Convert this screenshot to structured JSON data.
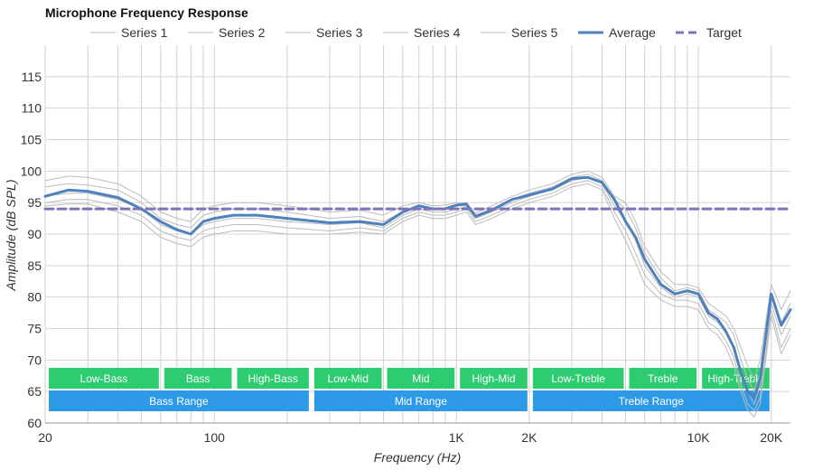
{
  "chart_data": {
    "type": "line",
    "title": "Microphone Frequency Response",
    "xlabel": "Frequency (Hz)",
    "ylabel": "Amplitude (dB SPL)",
    "x_scale": "log",
    "xlim": [
      20,
      24000
    ],
    "ylim": [
      60,
      120
    ],
    "x_ticks": [
      {
        "value": 20,
        "label": "20"
      },
      {
        "value": 100,
        "label": "100"
      },
      {
        "value": 1000,
        "label": "1K"
      },
      {
        "value": 2000,
        "label": "2K"
      },
      {
        "value": 10000,
        "label": "10K"
      },
      {
        "value": 20000,
        "label": "20K"
      }
    ],
    "y_ticks": [
      60,
      65,
      70,
      75,
      80,
      85,
      90,
      95,
      100,
      105,
      110,
      115
    ],
    "legend_position": "top",
    "grid": true,
    "x": [
      20,
      25,
      30,
      40,
      50,
      60,
      70,
      80,
      90,
      100,
      120,
      150,
      200,
      300,
      400,
      500,
      600,
      700,
      800,
      900,
      1000,
      1100,
      1200,
      1400,
      1700,
      2000,
      2500,
      3000,
      3500,
      4000,
      4500,
      5000,
      5500,
      6000,
      7000,
      8000,
      9000,
      10000,
      11000,
      12000,
      13000,
      14000,
      15000,
      16000,
      17000,
      18000,
      20000,
      22000,
      24000
    ],
    "series": [
      {
        "name": "Series 1",
        "color": "#bbbbbb",
        "dashed": false,
        "width": 1,
        "values": [
          98.5,
          99.2,
          99,
          98,
          96,
          93.5,
          92.5,
          92,
          94,
          94.5,
          95,
          95,
          94.5,
          93.5,
          93.8,
          93,
          94.5,
          95,
          94.5,
          94.6,
          95,
          94.8,
          93.3,
          94.5,
          96,
          97,
          98,
          99.5,
          100,
          99,
          96,
          95,
          92,
          88,
          84,
          82,
          82,
          81.5,
          79,
          78,
          77,
          75,
          72,
          69,
          67,
          70,
          82,
          78,
          81
        ]
      },
      {
        "name": "Series 2",
        "color": "#bbbbbb",
        "dashed": false,
        "width": 1,
        "values": [
          97.5,
          98,
          97.8,
          97,
          95,
          92.5,
          91.5,
          91,
          93,
          93.5,
          94,
          94,
          93.5,
          92.5,
          92.8,
          92,
          93.5,
          94.5,
          94,
          94,
          94.5,
          94.5,
          93,
          94,
          95.5,
          96.5,
          97.5,
          99,
          99.5,
          98.5,
          95.5,
          94,
          91,
          87,
          83,
          81,
          81.5,
          81,
          78,
          77,
          76,
          74,
          70,
          67,
          65,
          68,
          80,
          76,
          79
        ]
      },
      {
        "name": "Series 3",
        "color": "#bbbbbb",
        "dashed": false,
        "width": 1,
        "values": [
          96,
          96.5,
          96.5,
          95.5,
          94,
          91.5,
          90.5,
          90,
          91.5,
          92,
          92.5,
          92.5,
          92,
          91.5,
          91.8,
          91,
          93,
          94,
          93.5,
          93.5,
          94,
          94.3,
          92.5,
          93.5,
          95,
          96,
          97,
          98.5,
          99,
          98,
          94.5,
          92,
          89,
          85,
          81.5,
          80,
          80.5,
          80,
          77,
          76,
          74.5,
          72,
          68,
          65,
          63,
          66,
          79,
          74,
          77
        ]
      },
      {
        "name": "Series 4",
        "color": "#bbbbbb",
        "dashed": false,
        "width": 1,
        "values": [
          95,
          95.5,
          95.5,
          94.5,
          93,
          90.5,
          89.5,
          89,
          90.5,
          91,
          91.5,
          91.5,
          91,
          90.5,
          91,
          90.5,
          92.5,
          93.5,
          93,
          93,
          93.5,
          94,
          92,
          93,
          94.5,
          95.5,
          96.5,
          98,
          98.5,
          97.5,
          93.5,
          90.5,
          87,
          83.5,
          80.5,
          79.5,
          79.5,
          79,
          76,
          75,
          73,
          70.5,
          66,
          63,
          62,
          64,
          78,
          72,
          75
        ]
      },
      {
        "name": "Series 5",
        "color": "#bbbbbb",
        "dashed": false,
        "width": 1,
        "values": [
          94.5,
          94.8,
          94.8,
          93.5,
          92,
          89.5,
          88.5,
          88,
          89.5,
          90,
          90.5,
          90.5,
          90,
          90,
          90.3,
          90,
          92,
          93,
          92.5,
          92.5,
          93,
          93.5,
          91.5,
          92.5,
          94,
          95,
          96,
          97.5,
          98,
          97,
          92.5,
          89,
          85.5,
          82,
          79.5,
          78.5,
          78.5,
          78,
          75,
          74,
          72,
          69,
          65,
          62,
          61,
          63,
          77,
          71,
          74
        ]
      },
      {
        "name": "Average",
        "color": "#4f81bd",
        "dashed": false,
        "width": 3,
        "values": [
          96,
          97,
          96.8,
          95.8,
          94,
          92,
          90.7,
          90,
          92,
          92.5,
          93,
          93,
          92.5,
          91.8,
          92,
          91.5,
          93.5,
          94.5,
          94,
          94,
          94.6,
          94.8,
          92.8,
          93.8,
          95.5,
          96.2,
          97.2,
          98.8,
          99,
          98.2,
          95.5,
          92,
          89.5,
          86,
          82,
          80.5,
          81,
          80.5,
          77.5,
          76.5,
          74.5,
          72,
          68,
          65,
          64,
          67,
          80.5,
          75.5,
          78
        ]
      },
      {
        "name": "Target",
        "color": "#7b74b8",
        "dashed": true,
        "width": 3,
        "values": [
          94,
          94,
          94,
          94,
          94,
          94,
          94,
          94,
          94,
          94,
          94,
          94,
          94,
          94,
          94,
          94,
          94,
          94,
          94,
          94,
          94,
          94,
          94,
          94,
          94,
          94,
          94,
          94,
          94,
          94,
          94,
          94,
          94,
          94,
          94,
          94,
          94,
          94,
          94,
          94,
          94,
          94,
          94,
          94,
          94,
          94,
          94,
          94,
          94
        ]
      }
    ],
    "range_bands": [
      {
        "label": "Low-Bass",
        "from": 20,
        "to": 60,
        "row": 1,
        "color": "#2ecc71"
      },
      {
        "label": "Bass",
        "from": 60,
        "to": 120,
        "row": 1,
        "color": "#2ecc71"
      },
      {
        "label": "High-Bass",
        "from": 120,
        "to": 250,
        "row": 1,
        "color": "#2ecc71"
      },
      {
        "label": "Low-Mid",
        "from": 250,
        "to": 500,
        "row": 1,
        "color": "#2ecc71"
      },
      {
        "label": "Mid",
        "from": 500,
        "to": 1000,
        "row": 1,
        "color": "#2ecc71"
      },
      {
        "label": "High-Mid",
        "from": 1000,
        "to": 2000,
        "row": 1,
        "color": "#2ecc71"
      },
      {
        "label": "Low-Treble",
        "from": 2000,
        "to": 5000,
        "row": 1,
        "color": "#2ecc71"
      },
      {
        "label": "Treble",
        "from": 5000,
        "to": 10000,
        "row": 1,
        "color": "#2ecc71"
      },
      {
        "label": "High-Treble",
        "from": 10000,
        "to": 20000,
        "row": 1,
        "color": "#2ecc71"
      },
      {
        "label": "Bass Range",
        "from": 20,
        "to": 250,
        "row": 2,
        "color": "#2d9ae8"
      },
      {
        "label": "Mid Range",
        "from": 250,
        "to": 2000,
        "row": 2,
        "color": "#2d9ae8"
      },
      {
        "label": "Treble Range",
        "from": 2000,
        "to": 20000,
        "row": 2,
        "color": "#2d9ae8"
      }
    ]
  }
}
